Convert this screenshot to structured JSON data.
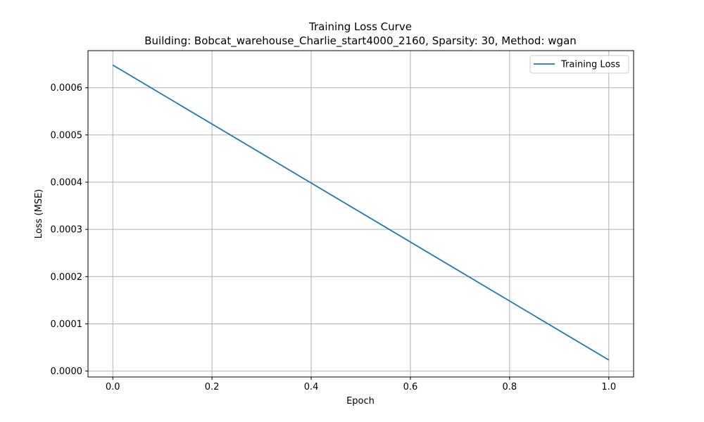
{
  "chart_data": {
    "type": "line",
    "title": "Training Loss Curve",
    "subtitle": "Building: Bobcat_warehouse_Charlie_start4000_2160, Sparsity: 30, Method: wgan",
    "xlabel": "Epoch",
    "ylabel": "Loss (MSE)",
    "xlim": [
      -0.05,
      1.05
    ],
    "ylim": [
      -1.25e-05,
      0.0006785
    ],
    "xticks": [
      0.0,
      0.2,
      0.4,
      0.6,
      0.8,
      1.0
    ],
    "xtick_labels": [
      "0.0",
      "0.2",
      "0.4",
      "0.6",
      "0.8",
      "1.0"
    ],
    "yticks": [
      0.0,
      0.0001,
      0.0002,
      0.0003,
      0.0004,
      0.0005,
      0.0006
    ],
    "ytick_labels": [
      "0.0000",
      "0.0001",
      "0.0002",
      "0.0003",
      "0.0004",
      "0.0005",
      "0.0006"
    ],
    "grid": true,
    "legend_position": "top-right",
    "series": [
      {
        "name": "Training Loss",
        "color": "#1f77b4",
        "x": [
          0,
          1
        ],
        "y": [
          0.000648,
          2.35e-05
        ]
      }
    ]
  }
}
